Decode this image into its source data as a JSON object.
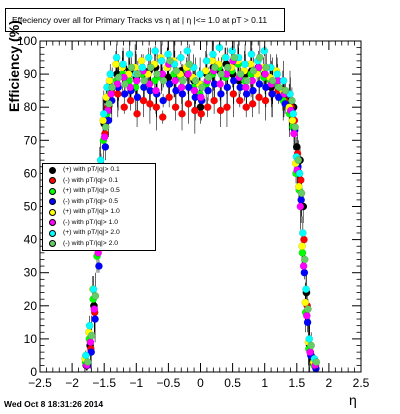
{
  "footer": "Wed Oct  8 18:31:26 2014",
  "chart_data": {
    "type": "scatter",
    "title": "Effeciency over all for Primary Tracks vs  η at | η |<= 1.0 at pT > 0.11",
    "xlabel": "η",
    "ylabel": "Efficiency (%)",
    "xlim": [
      -2.5,
      2.5
    ],
    "ylim": [
      0,
      100
    ],
    "x_ticks": [
      "−2.5",
      "−2",
      "−1.5",
      "−1",
      "−0.5",
      "0",
      "0.5",
      "1",
      "1.5",
      "2",
      "2.5"
    ],
    "y_ticks": [
      "0",
      "10",
      "20",
      "30",
      "40",
      "50",
      "60",
      "70",
      "80",
      "90",
      "100"
    ],
    "legend_position": "center-left",
    "series": [
      {
        "name": "(+) with pT/|q|> 0.1",
        "color": "#000000",
        "x": [
          -1.78,
          -1.72,
          -1.66,
          -1.6,
          -1.55,
          -1.5,
          -1.45,
          -1.4,
          -1.3,
          -1.2,
          -1.1,
          -1.0,
          -0.9,
          -0.8,
          -0.7,
          -0.6,
          -0.5,
          -0.4,
          -0.3,
          -0.2,
          -0.1,
          0.0,
          0.1,
          0.2,
          0.3,
          0.4,
          0.5,
          0.6,
          0.7,
          0.8,
          0.9,
          1.0,
          1.1,
          1.2,
          1.3,
          1.4,
          1.45,
          1.5,
          1.55,
          1.6,
          1.65,
          1.7,
          1.78
        ],
        "y": [
          2,
          8,
          20,
          40,
          60,
          75,
          82,
          86,
          90,
          92,
          91,
          89,
          90,
          91,
          92,
          90,
          89,
          90,
          91,
          90,
          88,
          80,
          90,
          92,
          91,
          93,
          90,
          88,
          90,
          91,
          92,
          90,
          86,
          88,
          83,
          82,
          80,
          68,
          64,
          50,
          24,
          8,
          2
        ]
      },
      {
        "name": "(-) with pT/|q|> 0.1",
        "color": "#ff0000",
        "x": [
          -1.78,
          -1.72,
          -1.66,
          -1.6,
          -1.55,
          -1.5,
          -1.45,
          -1.4,
          -1.3,
          -1.2,
          -1.1,
          -1.0,
          -0.9,
          -0.8,
          -0.7,
          -0.6,
          -0.5,
          -0.4,
          -0.3,
          -0.2,
          -0.1,
          0.0,
          0.1,
          0.2,
          0.3,
          0.4,
          0.5,
          0.6,
          0.7,
          0.8,
          0.9,
          1.0,
          1.1,
          1.2,
          1.3,
          1.4,
          1.45,
          1.5,
          1.55,
          1.6,
          1.65,
          1.7,
          1.78
        ],
        "y": [
          2,
          7,
          18,
          38,
          58,
          72,
          80,
          85,
          84,
          80,
          82,
          78,
          82,
          81,
          80,
          77,
          83,
          80,
          78,
          81,
          79,
          78,
          80,
          82,
          79,
          80,
          84,
          82,
          80,
          81,
          83,
          82,
          84,
          85,
          82,
          80,
          76,
          66,
          58,
          40,
          20,
          6,
          2
        ]
      },
      {
        "name": "(+) with pT/|q|> 0.5",
        "color": "#00ff00",
        "x": [
          -1.78,
          -1.72,
          -1.66,
          -1.6,
          -1.55,
          -1.5,
          -1.45,
          -1.4,
          -1.3,
          -1.2,
          -1.1,
          -1.0,
          -0.9,
          -0.8,
          -0.7,
          -0.6,
          -0.5,
          -0.4,
          -0.3,
          -0.2,
          -0.1,
          0.0,
          0.1,
          0.2,
          0.3,
          0.4,
          0.5,
          0.6,
          0.7,
          0.8,
          0.9,
          1.0,
          1.1,
          1.2,
          1.3,
          1.4,
          1.45,
          1.5,
          1.55,
          1.6,
          1.65,
          1.7,
          1.78
        ],
        "y": [
          3,
          10,
          22,
          35,
          55,
          70,
          78,
          84,
          88,
          90,
          88,
          86,
          90,
          87,
          88,
          89,
          92,
          90,
          89,
          91,
          86,
          84,
          87,
          90,
          92,
          89,
          91,
          93,
          88,
          90,
          91,
          89,
          88,
          87,
          82,
          78,
          74,
          60,
          55,
          36,
          18,
          7,
          2
        ]
      },
      {
        "name": "(-) with pT/|q|> 0.5",
        "color": "#0000ff",
        "x": [
          -1.78,
          -1.72,
          -1.66,
          -1.6,
          -1.55,
          -1.5,
          -1.45,
          -1.4,
          -1.3,
          -1.2,
          -1.1,
          -1.0,
          -0.9,
          -0.8,
          -0.7,
          -0.6,
          -0.5,
          -0.4,
          -0.3,
          -0.2,
          -0.1,
          0.0,
          0.1,
          0.2,
          0.3,
          0.4,
          0.5,
          0.6,
          0.7,
          0.8,
          0.9,
          1.0,
          1.1,
          1.2,
          1.3,
          1.4,
          1.45,
          1.5,
          1.55,
          1.6,
          1.65,
          1.7,
          1.78
        ],
        "y": [
          2,
          6,
          16,
          32,
          52,
          68,
          76,
          82,
          86,
          84,
          85,
          83,
          86,
          85,
          84,
          82,
          87,
          85,
          84,
          86,
          83,
          82,
          85,
          87,
          84,
          86,
          88,
          86,
          84,
          85,
          87,
          86,
          84,
          83,
          81,
          79,
          73,
          62,
          52,
          30,
          15,
          5,
          1
        ]
      },
      {
        "name": "(+) with pT/|q|> 1.0",
        "color": "#ffff00",
        "x": [
          -1.78,
          -1.72,
          -1.66,
          -1.6,
          -1.55,
          -1.5,
          -1.45,
          -1.4,
          -1.3,
          -1.2,
          -1.1,
          -1.0,
          -0.9,
          -0.8,
          -0.7,
          -0.6,
          -0.5,
          -0.4,
          -0.3,
          -0.2,
          -0.1,
          0.0,
          0.1,
          0.2,
          0.3,
          0.4,
          0.5,
          0.6,
          0.7,
          0.8,
          0.9,
          1.0,
          1.1,
          1.2,
          1.3,
          1.4,
          1.45,
          1.5,
          1.55,
          1.6,
          1.65,
          1.7,
          1.78
        ],
        "y": [
          4,
          12,
          25,
          45,
          62,
          76,
          83,
          88,
          93,
          92,
          90,
          92,
          94,
          90,
          93,
          95,
          92,
          94,
          90,
          92,
          89,
          87,
          91,
          94,
          93,
          95,
          92,
          94,
          91,
          93,
          90,
          92,
          89,
          91,
          85,
          80,
          76,
          63,
          56,
          38,
          21,
          9,
          3
        ]
      },
      {
        "name": "(-) with pT/|q|> 1.0",
        "color": "#ff00ff",
        "x": [
          -1.78,
          -1.72,
          -1.66,
          -1.6,
          -1.55,
          -1.5,
          -1.45,
          -1.4,
          -1.3,
          -1.2,
          -1.1,
          -1.0,
          -0.9,
          -0.8,
          -0.7,
          -0.6,
          -0.5,
          -0.4,
          -0.3,
          -0.2,
          -0.1,
          0.0,
          0.1,
          0.2,
          0.3,
          0.4,
          0.5,
          0.6,
          0.7,
          0.8,
          0.9,
          1.0,
          1.1,
          1.2,
          1.3,
          1.4,
          1.45,
          1.5,
          1.55,
          1.6,
          1.65,
          1.7,
          1.78
        ],
        "y": [
          2,
          9,
          19,
          36,
          56,
          71,
          79,
          84,
          87,
          89,
          86,
          88,
          91,
          87,
          85,
          90,
          93,
          88,
          86,
          90,
          85,
          83,
          88,
          91,
          87,
          90,
          94,
          89,
          86,
          88,
          92,
          90,
          87,
          88,
          84,
          79,
          72,
          61,
          50,
          32,
          17,
          6,
          2
        ]
      },
      {
        "name": "(+) with pT/|q|> 2.0",
        "color": "#00ffff",
        "x": [
          -1.78,
          -1.72,
          -1.66,
          -1.6,
          -1.55,
          -1.5,
          -1.45,
          -1.4,
          -1.3,
          -1.2,
          -1.1,
          -1.0,
          -0.9,
          -0.8,
          -0.7,
          -0.6,
          -0.5,
          -0.4,
          -0.3,
          -0.2,
          -0.1,
          0.0,
          0.1,
          0.2,
          0.3,
          0.4,
          0.5,
          0.6,
          0.7,
          0.8,
          0.9,
          1.0,
          1.1,
          1.2,
          1.3,
          1.4,
          1.45,
          1.5,
          1.55,
          1.6,
          1.65,
          1.7,
          1.78
        ],
        "y": [
          5,
          14,
          25,
          42,
          64,
          78,
          86,
          90,
          95,
          93,
          96,
          90,
          92,
          95,
          97,
          94,
          96,
          93,
          95,
          97,
          92,
          90,
          94,
          96,
          98,
          95,
          97,
          95,
          93,
          96,
          94,
          97,
          92,
          90,
          88,
          84,
          78,
          65,
          60,
          42,
          25,
          10,
          4
        ]
      },
      {
        "name": "(-) with pT/|q|> 2.0",
        "color": "#66cc66",
        "x": [
          -1.78,
          -1.72,
          -1.66,
          -1.6,
          -1.55,
          -1.5,
          -1.45,
          -1.4,
          -1.3,
          -1.2,
          -1.1,
          -1.0,
          -0.9,
          -0.8,
          -0.7,
          -0.6,
          -0.5,
          -0.4,
          -0.3,
          -0.2,
          -0.1,
          0.0,
          0.1,
          0.2,
          0.3,
          0.4,
          0.5,
          0.6,
          0.7,
          0.8,
          0.9,
          1.0,
          1.1,
          1.2,
          1.3,
          1.4,
          1.45,
          1.5,
          1.55,
          1.6,
          1.65,
          1.7,
          1.78
        ],
        "y": [
          3,
          11,
          23,
          40,
          59,
          74,
          81,
          86,
          89,
          87,
          92,
          90,
          88,
          92,
          90,
          88,
          94,
          91,
          88,
          93,
          88,
          86,
          89,
          92,
          90,
          92,
          95,
          90,
          88,
          91,
          95,
          92,
          88,
          86,
          85,
          82,
          74,
          64,
          54,
          34,
          19,
          8,
          3
        ]
      }
    ]
  }
}
